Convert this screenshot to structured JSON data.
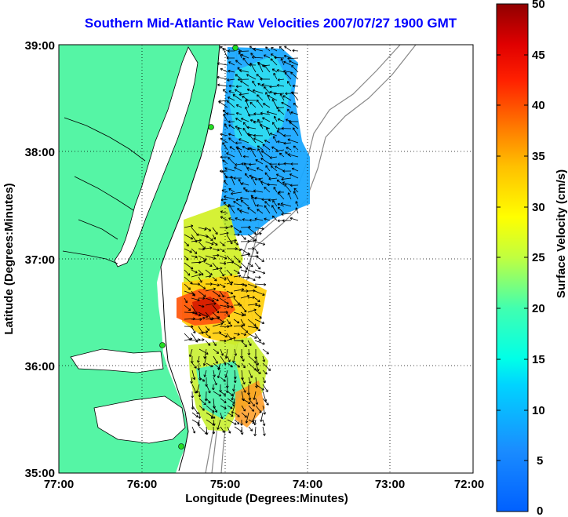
{
  "title": "Southern Mid-Atlantic Raw Velocities 2007/07/27 1900 GMT",
  "x_axis": {
    "label": "Longitude (Degrees:Minutes)",
    "ticks": [
      "77:00",
      "76:00",
      "75:00",
      "74:00",
      "73:00",
      "72:00"
    ]
  },
  "y_axis": {
    "label": "Latitude (Degrees:Minutes)",
    "ticks": [
      "39:00",
      "38:00",
      "37:00",
      "36:00",
      "35:00"
    ]
  },
  "colorbar": {
    "label": "Surface Velocity (cm/s)",
    "ticks": [
      "50",
      "45",
      "40",
      "35",
      "30",
      "25",
      "20",
      "15",
      "10",
      "5",
      "0"
    ],
    "min": 0,
    "max": 50,
    "colormap": "jet"
  },
  "map": {
    "extent": {
      "lon_west": -77,
      "lon_east": -72,
      "lat_south": 35,
      "lat_north": 39
    },
    "land_color": "#55f5a5",
    "grid": "dotted"
  }
}
